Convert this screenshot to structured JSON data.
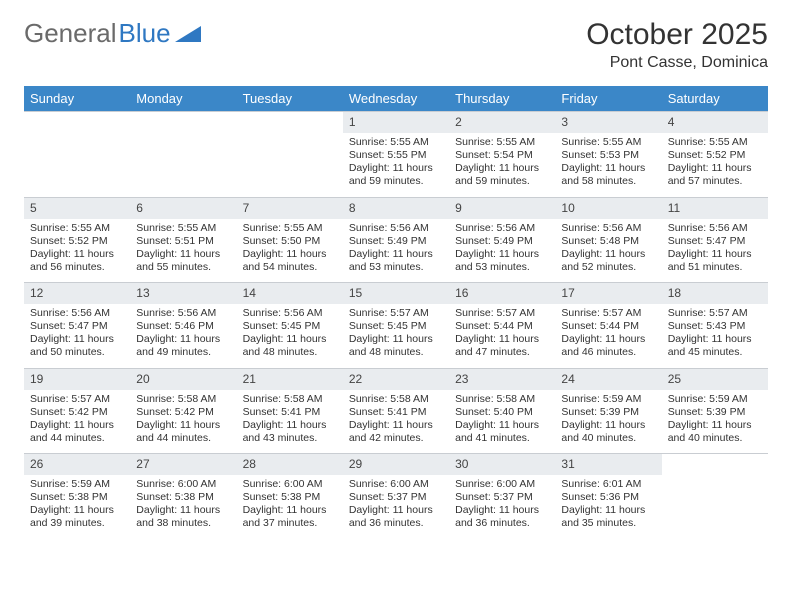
{
  "logo": {
    "text_gray": "General",
    "text_blue": "Blue"
  },
  "title": "October 2025",
  "location": "Pont Casse, Dominica",
  "colors": {
    "header_bg": "#3b87c8",
    "header_text": "#ffffff",
    "daynum_bg": "#e9ecef",
    "text": "#333333",
    "logo_gray": "#6a6a6a",
    "logo_blue": "#2f78c2"
  },
  "day_names": [
    "Sunday",
    "Monday",
    "Tuesday",
    "Wednesday",
    "Thursday",
    "Friday",
    "Saturday"
  ],
  "weeks": [
    [
      null,
      null,
      null,
      {
        "n": "1",
        "sr": "5:55 AM",
        "ss": "5:55 PM",
        "dl": "11 hours and 59 minutes."
      },
      {
        "n": "2",
        "sr": "5:55 AM",
        "ss": "5:54 PM",
        "dl": "11 hours and 59 minutes."
      },
      {
        "n": "3",
        "sr": "5:55 AM",
        "ss": "5:53 PM",
        "dl": "11 hours and 58 minutes."
      },
      {
        "n": "4",
        "sr": "5:55 AM",
        "ss": "5:52 PM",
        "dl": "11 hours and 57 minutes."
      }
    ],
    [
      {
        "n": "5",
        "sr": "5:55 AM",
        "ss": "5:52 PM",
        "dl": "11 hours and 56 minutes."
      },
      {
        "n": "6",
        "sr": "5:55 AM",
        "ss": "5:51 PM",
        "dl": "11 hours and 55 minutes."
      },
      {
        "n": "7",
        "sr": "5:55 AM",
        "ss": "5:50 PM",
        "dl": "11 hours and 54 minutes."
      },
      {
        "n": "8",
        "sr": "5:56 AM",
        "ss": "5:49 PM",
        "dl": "11 hours and 53 minutes."
      },
      {
        "n": "9",
        "sr": "5:56 AM",
        "ss": "5:49 PM",
        "dl": "11 hours and 53 minutes."
      },
      {
        "n": "10",
        "sr": "5:56 AM",
        "ss": "5:48 PM",
        "dl": "11 hours and 52 minutes."
      },
      {
        "n": "11",
        "sr": "5:56 AM",
        "ss": "5:47 PM",
        "dl": "11 hours and 51 minutes."
      }
    ],
    [
      {
        "n": "12",
        "sr": "5:56 AM",
        "ss": "5:47 PM",
        "dl": "11 hours and 50 minutes."
      },
      {
        "n": "13",
        "sr": "5:56 AM",
        "ss": "5:46 PM",
        "dl": "11 hours and 49 minutes."
      },
      {
        "n": "14",
        "sr": "5:56 AM",
        "ss": "5:45 PM",
        "dl": "11 hours and 48 minutes."
      },
      {
        "n": "15",
        "sr": "5:57 AM",
        "ss": "5:45 PM",
        "dl": "11 hours and 48 minutes."
      },
      {
        "n": "16",
        "sr": "5:57 AM",
        "ss": "5:44 PM",
        "dl": "11 hours and 47 minutes."
      },
      {
        "n": "17",
        "sr": "5:57 AM",
        "ss": "5:44 PM",
        "dl": "11 hours and 46 minutes."
      },
      {
        "n": "18",
        "sr": "5:57 AM",
        "ss": "5:43 PM",
        "dl": "11 hours and 45 minutes."
      }
    ],
    [
      {
        "n": "19",
        "sr": "5:57 AM",
        "ss": "5:42 PM",
        "dl": "11 hours and 44 minutes."
      },
      {
        "n": "20",
        "sr": "5:58 AM",
        "ss": "5:42 PM",
        "dl": "11 hours and 44 minutes."
      },
      {
        "n": "21",
        "sr": "5:58 AM",
        "ss": "5:41 PM",
        "dl": "11 hours and 43 minutes."
      },
      {
        "n": "22",
        "sr": "5:58 AM",
        "ss": "5:41 PM",
        "dl": "11 hours and 42 minutes."
      },
      {
        "n": "23",
        "sr": "5:58 AM",
        "ss": "5:40 PM",
        "dl": "11 hours and 41 minutes."
      },
      {
        "n": "24",
        "sr": "5:59 AM",
        "ss": "5:39 PM",
        "dl": "11 hours and 40 minutes."
      },
      {
        "n": "25",
        "sr": "5:59 AM",
        "ss": "5:39 PM",
        "dl": "11 hours and 40 minutes."
      }
    ],
    [
      {
        "n": "26",
        "sr": "5:59 AM",
        "ss": "5:38 PM",
        "dl": "11 hours and 39 minutes."
      },
      {
        "n": "27",
        "sr": "6:00 AM",
        "ss": "5:38 PM",
        "dl": "11 hours and 38 minutes."
      },
      {
        "n": "28",
        "sr": "6:00 AM",
        "ss": "5:38 PM",
        "dl": "11 hours and 37 minutes."
      },
      {
        "n": "29",
        "sr": "6:00 AM",
        "ss": "5:37 PM",
        "dl": "11 hours and 36 minutes."
      },
      {
        "n": "30",
        "sr": "6:00 AM",
        "ss": "5:37 PM",
        "dl": "11 hours and 36 minutes."
      },
      {
        "n": "31",
        "sr": "6:01 AM",
        "ss": "5:36 PM",
        "dl": "11 hours and 35 minutes."
      },
      null
    ]
  ],
  "labels": {
    "sunrise": "Sunrise:",
    "sunset": "Sunset:",
    "daylight": "Daylight:"
  }
}
